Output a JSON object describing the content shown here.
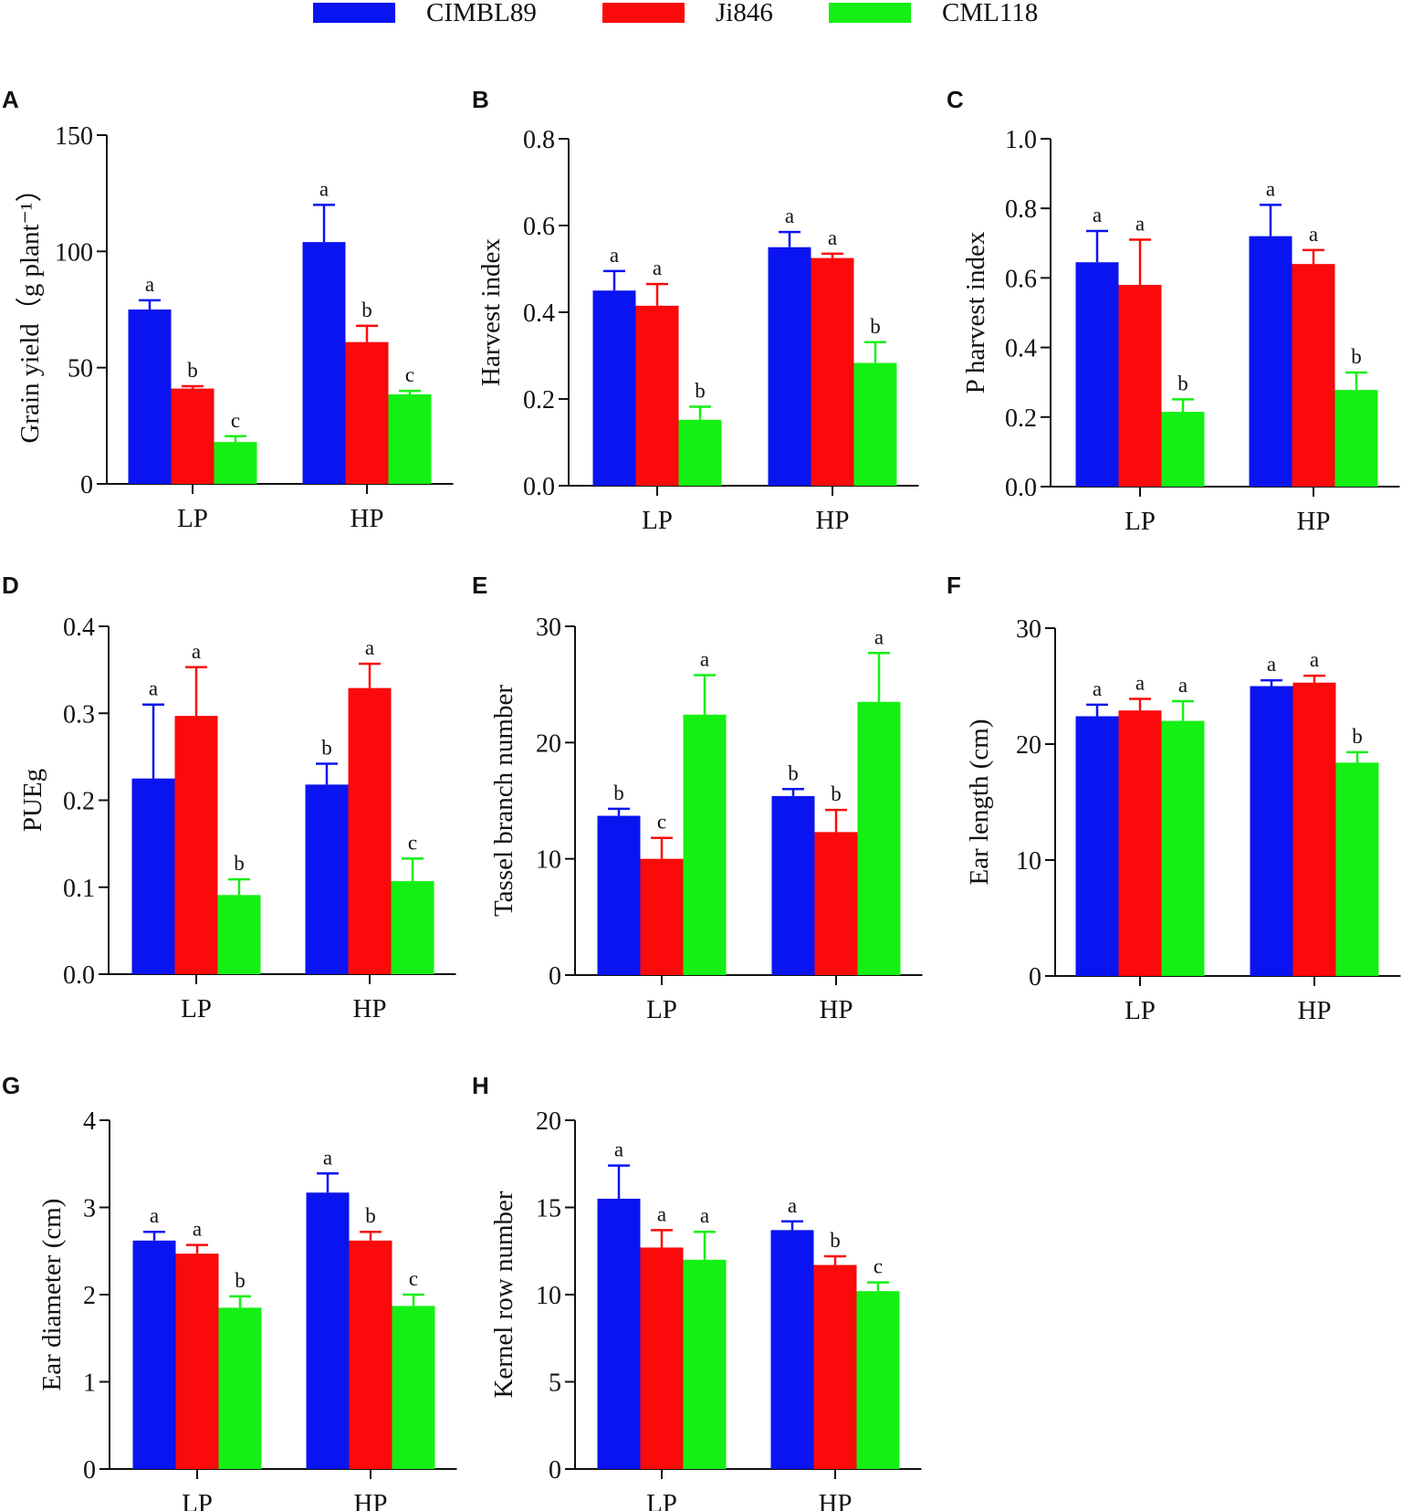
{
  "legend": [
    {
      "label": "CIMBL89",
      "color": "#0a14f0"
    },
    {
      "label": "Ji846",
      "color": "#fa0a0a"
    },
    {
      "label": "CML118",
      "color": "#14f014"
    }
  ],
  "chart_data": [
    {
      "type": "bar",
      "panel": "A",
      "ylabel": "Grain yield（g plant⁻¹）",
      "categories": [
        "LP",
        "HP"
      ],
      "ylim": [
        0,
        150
      ],
      "yticks": [
        "0",
        "50",
        "100",
        "150"
      ],
      "series": [
        {
          "name": "CIMBL89",
          "values": [
            75,
            104
          ],
          "errors": [
            4,
            16
          ],
          "letters": [
            "a",
            "a"
          ]
        },
        {
          "name": "Ji846",
          "values": [
            41,
            61
          ],
          "errors": [
            1,
            7
          ],
          "letters": [
            "b",
            "b"
          ]
        },
        {
          "name": "CML118",
          "values": [
            18,
            38.5
          ],
          "errors": [
            2.5,
            1.5
          ],
          "letters": [
            "c",
            "c"
          ]
        }
      ]
    },
    {
      "type": "bar",
      "panel": "B",
      "ylabel": "Harvest index",
      "categories": [
        "LP",
        "HP"
      ],
      "ylim": [
        0,
        0.8
      ],
      "yticks": [
        "0.0",
        "0.2",
        "0.4",
        "0.6",
        "0.8"
      ],
      "series": [
        {
          "name": "CIMBL89",
          "values": [
            0.45,
            0.55
          ],
          "errors": [
            0.045,
            0.035
          ],
          "letters": [
            "a",
            "a"
          ]
        },
        {
          "name": "Ji846",
          "values": [
            0.415,
            0.525
          ],
          "errors": [
            0.05,
            0.01
          ],
          "letters": [
            "a",
            "a"
          ]
        },
        {
          "name": "CML118",
          "values": [
            0.152,
            0.283
          ],
          "errors": [
            0.03,
            0.048
          ],
          "letters": [
            "b",
            "b"
          ]
        }
      ]
    },
    {
      "type": "bar",
      "panel": "C",
      "ylabel": "P harvest index",
      "categories": [
        "LP",
        "HP"
      ],
      "ylim": [
        0,
        1.0
      ],
      "yticks": [
        "0.0",
        "0.2",
        "0.4",
        "0.6",
        "0.8",
        "1.0"
      ],
      "series": [
        {
          "name": "CIMBL89",
          "values": [
            0.645,
            0.72
          ],
          "errors": [
            0.09,
            0.09
          ],
          "letters": [
            "a",
            "a"
          ]
        },
        {
          "name": "Ji846",
          "values": [
            0.58,
            0.64
          ],
          "errors": [
            0.13,
            0.04
          ],
          "letters": [
            "a",
            "a"
          ]
        },
        {
          "name": "CML118",
          "values": [
            0.215,
            0.278
          ],
          "errors": [
            0.036,
            0.05
          ],
          "letters": [
            "b",
            "b"
          ]
        }
      ]
    },
    {
      "type": "bar",
      "panel": "D",
      "ylabel": "PUEg",
      "categories": [
        "LP",
        "HP"
      ],
      "ylim": [
        0,
        0.4
      ],
      "yticks": [
        "0.0",
        "0.1",
        "0.2",
        "0.3",
        "0.4"
      ],
      "series": [
        {
          "name": "CIMBL89",
          "values": [
            0.225,
            0.218
          ],
          "errors": [
            0.085,
            0.024
          ],
          "letters": [
            "a",
            "b"
          ]
        },
        {
          "name": "Ji846",
          "values": [
            0.297,
            0.329
          ],
          "errors": [
            0.056,
            0.028
          ],
          "letters": [
            "a",
            "a"
          ]
        },
        {
          "name": "CML118",
          "values": [
            0.091,
            0.107
          ],
          "errors": [
            0.018,
            0.026
          ],
          "letters": [
            "b",
            "c"
          ]
        }
      ]
    },
    {
      "type": "bar",
      "panel": "E",
      "ylabel": "Tassel branch number",
      "categories": [
        "LP",
        "HP"
      ],
      "ylim": [
        0,
        30
      ],
      "yticks": [
        "0",
        "10",
        "20",
        "30"
      ],
      "series": [
        {
          "name": "CIMBL89",
          "values": [
            13.7,
            15.4
          ],
          "errors": [
            0.6,
            0.6
          ],
          "letters": [
            "b",
            "b"
          ]
        },
        {
          "name": "Ji846",
          "values": [
            10,
            12.3
          ],
          "errors": [
            1.8,
            1.9
          ],
          "letters": [
            "c",
            "b"
          ]
        },
        {
          "name": "CML118",
          "values": [
            22.4,
            23.5
          ],
          "errors": [
            3.4,
            4.2
          ],
          "letters": [
            "a",
            "a"
          ]
        }
      ]
    },
    {
      "type": "bar",
      "panel": "F",
      "ylabel": "Ear length (cm)",
      "categories": [
        "LP",
        "HP"
      ],
      "ylim": [
        0,
        30
      ],
      "yticks": [
        "0",
        "10",
        "20",
        "30"
      ],
      "series": [
        {
          "name": "CIMBL89",
          "values": [
            22.4,
            25
          ],
          "errors": [
            1,
            0.5
          ],
          "letters": [
            "a",
            "a"
          ]
        },
        {
          "name": "Ji846",
          "values": [
            22.9,
            25.3
          ],
          "errors": [
            1,
            0.6
          ],
          "letters": [
            "a",
            "a"
          ]
        },
        {
          "name": "CML118",
          "values": [
            22,
            18.4
          ],
          "errors": [
            1.7,
            0.9
          ],
          "letters": [
            "a",
            "b"
          ]
        }
      ]
    },
    {
      "type": "bar",
      "panel": "G",
      "ylabel": "Ear diameter (cm)",
      "categories": [
        "LP",
        "HP"
      ],
      "ylim": [
        0,
        4
      ],
      "yticks": [
        "0",
        "1",
        "2",
        "3",
        "4"
      ],
      "series": [
        {
          "name": "CIMBL89",
          "values": [
            2.62,
            3.17
          ],
          "errors": [
            0.1,
            0.22
          ],
          "letters": [
            "a",
            "a"
          ]
        },
        {
          "name": "Ji846",
          "values": [
            2.47,
            2.62
          ],
          "errors": [
            0.1,
            0.1
          ],
          "letters": [
            "a",
            "b"
          ]
        },
        {
          "name": "CML118",
          "values": [
            1.85,
            1.87
          ],
          "errors": [
            0.13,
            0.13
          ],
          "letters": [
            "b",
            "c"
          ]
        }
      ]
    },
    {
      "type": "bar",
      "panel": "H",
      "ylabel": "Kernel row number",
      "categories": [
        "LP",
        "HP"
      ],
      "ylim": [
        0,
        20
      ],
      "yticks": [
        "0",
        "5",
        "10",
        "15",
        "20"
      ],
      "series": [
        {
          "name": "CIMBL89",
          "values": [
            15.5,
            13.7
          ],
          "errors": [
            1.9,
            0.5
          ],
          "letters": [
            "a",
            "a"
          ]
        },
        {
          "name": "Ji846",
          "values": [
            12.7,
            11.7
          ],
          "errors": [
            1,
            0.5
          ],
          "letters": [
            "a",
            "b"
          ]
        },
        {
          "name": "CML118",
          "values": [
            12,
            10.2
          ],
          "errors": [
            1.6,
            0.5
          ],
          "letters": [
            "a",
            "c"
          ]
        }
      ]
    }
  ]
}
